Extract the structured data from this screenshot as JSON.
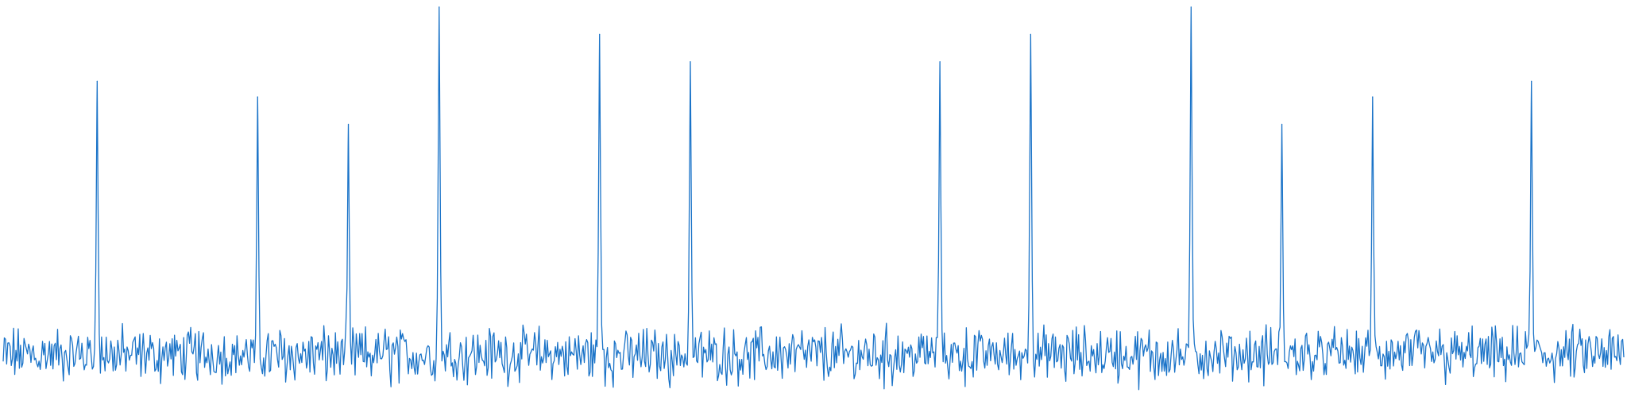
{
  "chart_data": {
    "type": "line",
    "title": "",
    "xlabel": "",
    "ylabel": "",
    "grid": false,
    "legend": "none",
    "axes_visible": false,
    "line_color": "#1a73c8",
    "xlim": [
      0,
      1000
    ],
    "ylim": [
      0,
      1
    ],
    "noise_level": [
      0.0,
      0.19
    ],
    "series": [
      {
        "peaks": [
          {
            "x": 58,
            "y": 0.8
          },
          {
            "x": 157,
            "y": 0.76
          },
          {
            "x": 213,
            "y": 0.69
          },
          {
            "x": 269,
            "y": 0.99
          },
          {
            "x": 368,
            "y": 0.92
          },
          {
            "x": 424,
            "y": 0.85
          },
          {
            "x": 578,
            "y": 0.85
          },
          {
            "x": 634,
            "y": 0.92
          },
          {
            "x": 733,
            "y": 0.99
          },
          {
            "x": 789,
            "y": 0.69
          },
          {
            "x": 845,
            "y": 0.76
          },
          {
            "x": 943,
            "y": 0.8
          }
        ]
      }
    ]
  }
}
